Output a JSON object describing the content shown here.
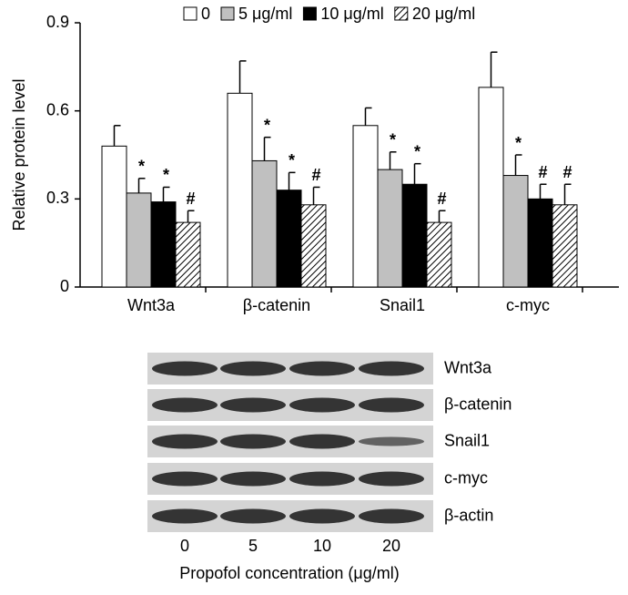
{
  "chart_data": {
    "type": "bar",
    "ylabel": "Relative protein level",
    "categories": [
      "Wnt3a",
      "β-catenin",
      "Snail1",
      "c-myc"
    ],
    "series": [
      {
        "name": "0",
        "color": "#ffffff",
        "values": [
          0.48,
          0.66,
          0.55,
          0.68
        ],
        "errors": [
          0.07,
          0.11,
          0.06,
          0.12
        ]
      },
      {
        "name": "5 μg/ml",
        "color": "#c0c0c0",
        "values": [
          0.32,
          0.43,
          0.4,
          0.38
        ],
        "errors": [
          0.05,
          0.08,
          0.06,
          0.07
        ],
        "markers": [
          "*",
          "*",
          "*",
          "*"
        ]
      },
      {
        "name": "10 μg/ml",
        "color": "#000000",
        "values": [
          0.29,
          0.33,
          0.35,
          0.3
        ],
        "errors": [
          0.05,
          0.06,
          0.07,
          0.05
        ],
        "markers": [
          "*",
          "*",
          "*",
          "#"
        ]
      },
      {
        "name": "20 μg/ml",
        "color": "#000000",
        "hatch": true,
        "values": [
          0.22,
          0.28,
          0.22,
          0.28
        ],
        "errors": [
          0.04,
          0.06,
          0.04,
          0.07
        ],
        "markers": [
          "#",
          "#",
          "#",
          "#"
        ]
      }
    ],
    "ylim": [
      0,
      0.9
    ],
    "yticks": [
      0,
      0.3,
      0.6,
      0.9
    ]
  },
  "blot": {
    "rows": [
      "Wnt3a",
      "β-catenin",
      "Snail1",
      "c-myc",
      "β-actin"
    ],
    "lanes": [
      "0",
      "5",
      "10",
      "20"
    ],
    "xlabel": "Propofol concentration (μg/ml)"
  }
}
